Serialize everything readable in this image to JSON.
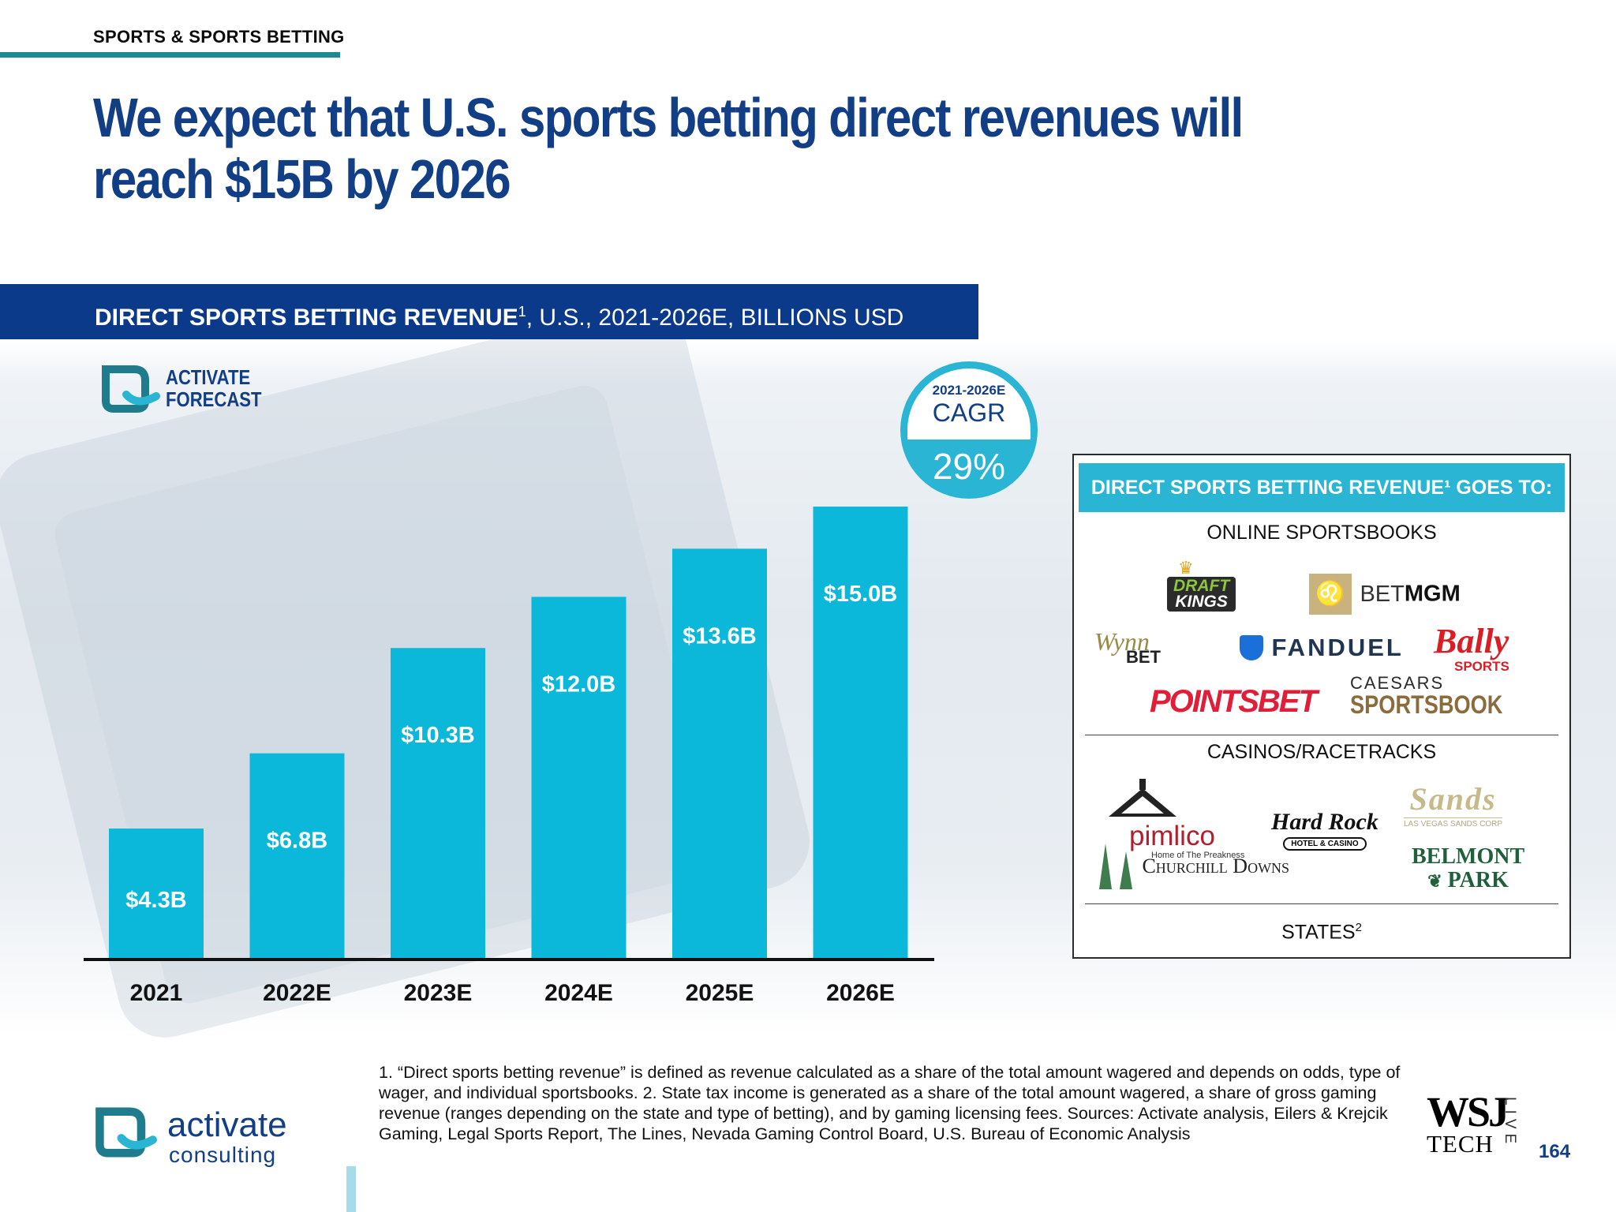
{
  "header": {
    "section_tag": "SPORTS & SPORTS BETTING",
    "headline": "We expect that U.S. sports betting direct revenues will reach $15B by 2026"
  },
  "banner": {
    "bold": "DIRECT SPORTS BETTING REVENUE",
    "sup": "1",
    "rest": ", U.S., 2021-2026E, BILLIONS USD"
  },
  "forecast_badge": {
    "line1": "ACTIVATE",
    "line2": "FORECAST"
  },
  "cagr": {
    "period": "2021-2026E",
    "label": "CAGR",
    "value": "29%"
  },
  "chart_data": {
    "type": "bar",
    "title": "DIRECT SPORTS BETTING REVENUE1, U.S., 2021-2026E, BILLIONS USD",
    "categories": [
      "2021",
      "2022E",
      "2023E",
      "2024E",
      "2025E",
      "2026E"
    ],
    "values": [
      4.3,
      6.8,
      10.3,
      12.0,
      13.6,
      15.0
    ],
    "data_labels": [
      "$4.3B",
      "$6.8B",
      "$10.3B",
      "$12.0B",
      "$13.6B",
      "$15.0B"
    ],
    "unit": "Billions USD",
    "ylim": [
      0,
      15
    ],
    "grid": false,
    "bar_color": "#0bb8da"
  },
  "side_panel": {
    "header": "DIRECT SPORTS BETTING REVENUE¹ GOES TO:",
    "online_title": "ONLINE SPORTSBOOKS",
    "online_logos": {
      "draftkings_1": "DRAFT",
      "draftkings_2": "KINGS",
      "betmgm_1": "BET",
      "betmgm_2": "MGM",
      "wynnbet_1": "Wynn",
      "wynnbet_2": "BET",
      "fanduel": "FANDUEL",
      "bally_1": "Bally",
      "bally_2": "SPORTS",
      "pointsbet": "POINTSBET",
      "caesars_1": "CAESARS",
      "caesars_2": "SPORTSBOOK"
    },
    "casinos_title": "CASINOS/RACETRACKS",
    "casino_logos": {
      "pimlico_1": "pimlico",
      "pimlico_2": "Home of The Preakness",
      "hardrock_1": "Hard Rock",
      "hardrock_2": "HOTEL & CASINO",
      "sands_1": "Sands",
      "sands_2": "LAS VEGAS SANDS CORP",
      "churchill": "Churchill Downs",
      "belmont_1": "BELMONT",
      "belmont_2": "PARK"
    },
    "states_title": "STATES",
    "states_sup": "2"
  },
  "footnote": "1. “Direct sports betting revenue” is defined as revenue calculated as a share of the total amount wagered and depends on odds, type of wager, and individual sportsbooks.  2. State tax income is generated as a share of the total amount wagered, a share of gross gaming revenue (ranges depending on the state and type of betting), and by gaming licensing fees. Sources: Activate analysis, Eilers & Krejcik Gaming, Legal Sports Report, The Lines, Nevada Gaming Control Board, U.S. Bureau of Economic Analysis",
  "footer": {
    "brand_1": "activate",
    "brand_2": "consulting",
    "wsj_1": "WSJ",
    "wsj_2": "TECH",
    "wsj_3": "LIVE",
    "page_number": "164"
  },
  "colors": {
    "navy": "#123e86",
    "cyan": "#29b5d3",
    "teal_rule": "#1d8a92"
  }
}
